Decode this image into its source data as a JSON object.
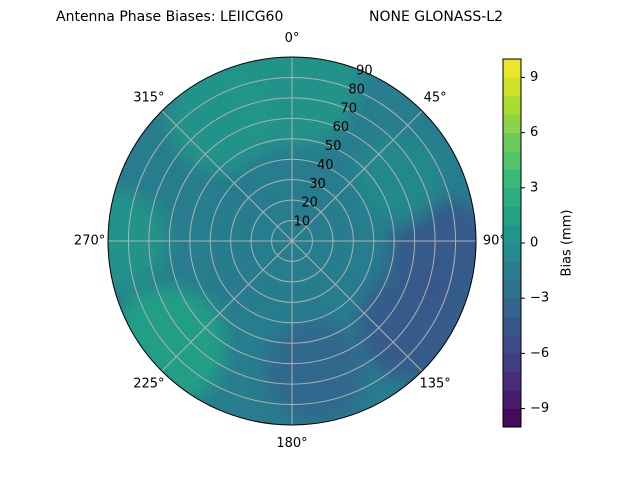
{
  "chart_data": {
    "type": "heatmap",
    "projection": "polar",
    "title_left": "Antenna Phase Biases: LEIICG60",
    "title_right": "NONE GLONASS-L2",
    "theta_direction": "clockwise",
    "theta_zero": "top",
    "theta_ticks": [
      "0°",
      "45°",
      "90°",
      "135°",
      "180°",
      "225°",
      "270°",
      "315°"
    ],
    "theta_tick_values": [
      0,
      45,
      90,
      135,
      180,
      225,
      270,
      315
    ],
    "r_ticks": [
      "10",
      "20",
      "30",
      "40",
      "50",
      "60",
      "70",
      "80",
      "90"
    ],
    "r_tick_values": [
      10,
      20,
      30,
      40,
      50,
      60,
      70,
      80,
      90
    ],
    "rlim": [
      0,
      90
    ],
    "grid": true,
    "colorbar": {
      "label": "Bias (mm)",
      "vmin": -10,
      "vmax": 10,
      "levels": 20,
      "ticks": [
        "−9",
        "−6",
        "−3",
        "0",
        "3",
        "6",
        "9"
      ],
      "tick_values": [
        -9,
        -6,
        -3,
        0,
        3,
        6,
        9
      ],
      "colormap": "viridis"
    },
    "field_description_levels": {
      "center": -1.5,
      "north_outer": 0.5,
      "east_outer": -4.5,
      "southeast_outer": -5,
      "southwest_outer": 1.5,
      "west_outer": 0
    }
  }
}
